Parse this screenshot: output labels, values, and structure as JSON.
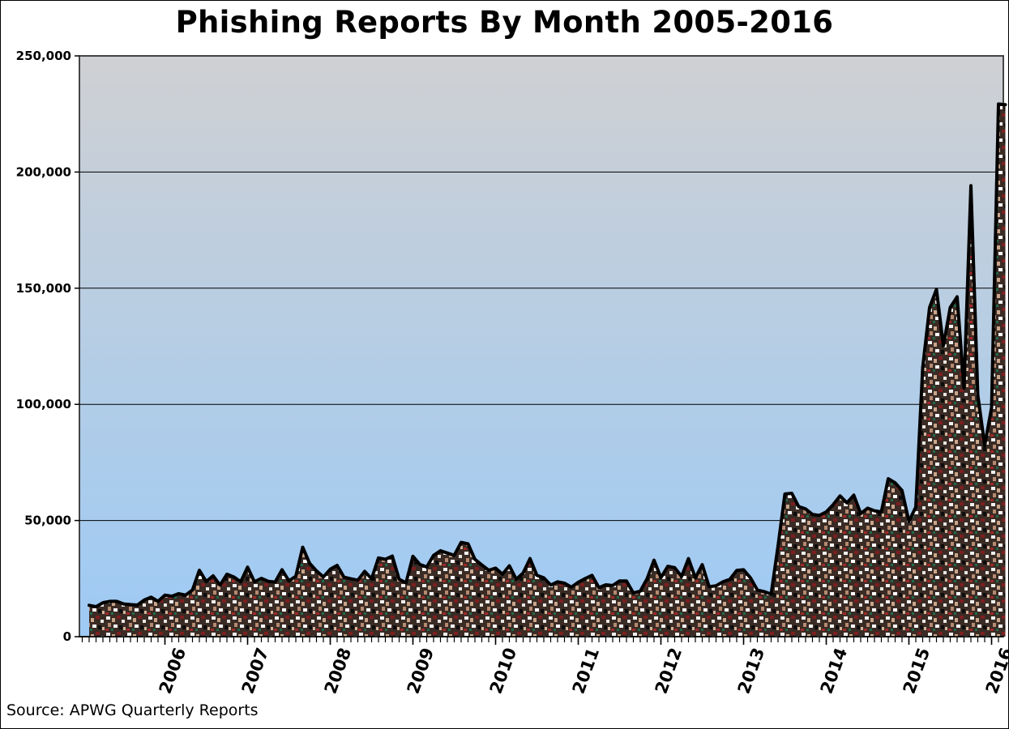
{
  "chart_data": {
    "type": "area",
    "title": "Phishing Reports By Month 2005-2016",
    "source": "Source: APWG Quarterly Reports",
    "x_start": "2005-02",
    "x_end": "2016-03",
    "ylim": [
      0,
      250000
    ],
    "yticks": [
      "0",
      "50,000",
      "100,000",
      "150,000",
      "200,000",
      "250,000"
    ],
    "xticks": [
      "2006",
      "2007",
      "2008",
      "2009",
      "2010",
      "2011",
      "2012",
      "2013",
      "2014",
      "2015",
      "2016"
    ],
    "grid": true,
    "series": [
      {
        "x": [
          "2005-02",
          "2005-03",
          "2005-04",
          "2005-05",
          "2005-06",
          "2005-07",
          "2005-08",
          "2005-09",
          "2005-10",
          "2005-11",
          "2005-12",
          "2006-01",
          "2006-02",
          "2006-03",
          "2006-04",
          "2006-05",
          "2006-06",
          "2006-07",
          "2006-08",
          "2006-09",
          "2006-10",
          "2006-11",
          "2006-12",
          "2007-01",
          "2007-02",
          "2007-03",
          "2007-04",
          "2007-05",
          "2007-06",
          "2007-07",
          "2007-08",
          "2007-09",
          "2007-10",
          "2007-11",
          "2007-12",
          "2008-01",
          "2008-02",
          "2008-03",
          "2008-04",
          "2008-05",
          "2008-06",
          "2008-07",
          "2008-08",
          "2008-09",
          "2008-10",
          "2008-11",
          "2008-12",
          "2009-01",
          "2009-02",
          "2009-03",
          "2009-04",
          "2009-05",
          "2009-06",
          "2009-07",
          "2009-08",
          "2009-09",
          "2009-10",
          "2009-11",
          "2009-12",
          "2010-01",
          "2010-02",
          "2010-03",
          "2010-04",
          "2010-05",
          "2010-06",
          "2010-07",
          "2010-08",
          "2010-09",
          "2010-10",
          "2010-11",
          "2010-12",
          "2011-01",
          "2011-02",
          "2011-03",
          "2011-04",
          "2011-05",
          "2011-06",
          "2011-07",
          "2011-08",
          "2011-09",
          "2011-10",
          "2011-11",
          "2011-12",
          "2012-01",
          "2012-02",
          "2012-03",
          "2012-04",
          "2012-05",
          "2012-06",
          "2012-07",
          "2012-08",
          "2012-09",
          "2012-10",
          "2012-11",
          "2012-12",
          "2013-01",
          "2013-02",
          "2013-03",
          "2013-04",
          "2013-05",
          "2013-06",
          "2013-07",
          "2013-08",
          "2013-09",
          "2013-10",
          "2013-11",
          "2013-12",
          "2014-01",
          "2014-02",
          "2014-03",
          "2014-04",
          "2014-05",
          "2014-06",
          "2014-07",
          "2014-08",
          "2014-09",
          "2014-10",
          "2014-11",
          "2014-12",
          "2015-01",
          "2015-02",
          "2015-03",
          "2015-04",
          "2015-05",
          "2015-06",
          "2015-07",
          "2015-08",
          "2015-09",
          "2015-10",
          "2015-11",
          "2015-12",
          "2016-01",
          "2016-02",
          "2016-03"
        ],
        "values": [
          13500,
          12900,
          14600,
          15200,
          15200,
          14100,
          13800,
          13600,
          15800,
          17000,
          15200,
          17900,
          17400,
          18500,
          17900,
          20100,
          28600,
          23700,
          26200,
          22200,
          26900,
          25700,
          23600,
          29900,
          23600,
          25100,
          23800,
          23500,
          28800,
          24000,
          26000,
          38500,
          31600,
          28300,
          25700,
          29000,
          30700,
          25600,
          24900,
          24300,
          28100,
          24900,
          33900,
          33300,
          34700,
          24700,
          23200,
          34600,
          31100,
          30000,
          35000,
          37000,
          36000,
          35000,
          40600,
          40000,
          33300,
          30900,
          28600,
          29500,
          26900,
          30500,
          24700,
          27400,
          33600,
          26400,
          25300,
          22200,
          23600,
          23000,
          21300,
          23400,
          25000,
          26400,
          21100,
          22300,
          22000,
          24000,
          24000,
          18800,
          19600,
          25000,
          32900,
          25400,
          30300,
          29700,
          25900,
          33600,
          25300,
          31000,
          21500,
          21900,
          23600,
          24700,
          28500,
          28800,
          25300,
          20100,
          19400,
          18300,
          39000,
          61400,
          61700,
          56000,
          55000,
          52600,
          52200,
          53700,
          56800,
          60600,
          57600,
          60900,
          53000,
          55300,
          54200,
          53700,
          68000,
          66200,
          62900,
          49600,
          55800,
          115800,
          141700,
          149500,
          125200,
          141700,
          146300,
          107000,
          194100,
          104000,
          82300,
          98600,
          229300,
          229000
        ]
      }
    ]
  }
}
